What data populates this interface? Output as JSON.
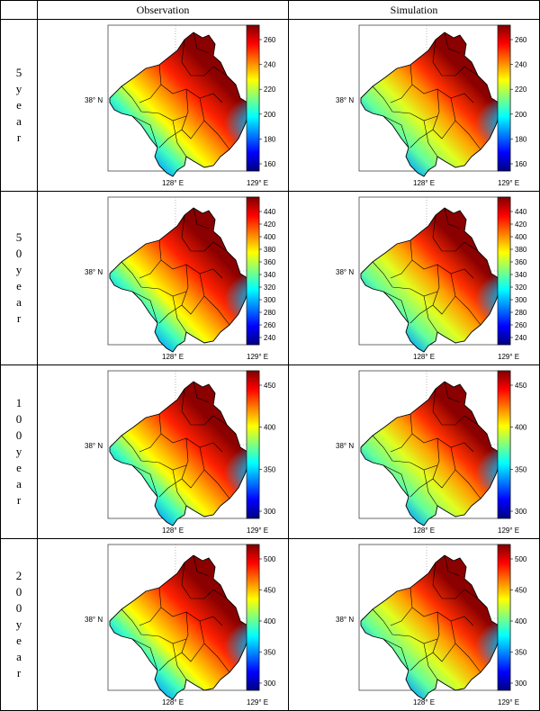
{
  "header": {
    "corner": "",
    "col_observation": "Observation",
    "col_simulation": "Simulation"
  },
  "rows": [
    {
      "label": "5 year",
      "ticks": [
        "260",
        "240",
        "220",
        "200",
        "180",
        "160"
      ]
    },
    {
      "label": "50 year",
      "ticks": [
        "440",
        "420",
        "400",
        "380",
        "360",
        "340",
        "320",
        "300",
        "280",
        "260",
        "240"
      ]
    },
    {
      "label": "100 year",
      "ticks": [
        "450",
        "400",
        "350",
        "300"
      ]
    },
    {
      "label": "200 year",
      "ticks": [
        "500",
        "450",
        "400",
        "350",
        "300"
      ]
    }
  ],
  "axes": {
    "lat_label": "38° N",
    "lon_label_1": "128° E",
    "lon_label_2": "129° E"
  },
  "colormap": [
    "#00007f",
    "#0000ff",
    "#007fff",
    "#00ffff",
    "#7fff7f",
    "#ffff00",
    "#ff7f00",
    "#ff0000",
    "#7f0000"
  ]
}
